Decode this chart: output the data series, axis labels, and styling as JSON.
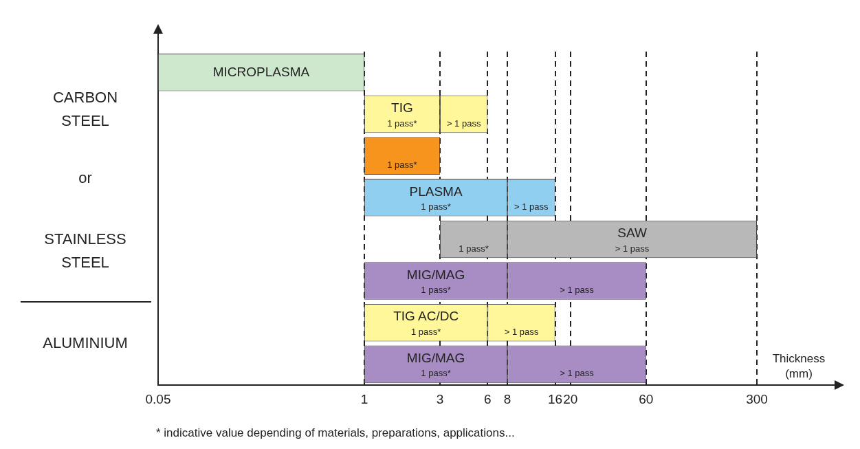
{
  "chart_data": {
    "type": "bar",
    "orientation": "horizontal",
    "categories": [
      "MICROPLASMA",
      "TIG",
      null,
      "PLASMA",
      "SAW",
      "MIG/MAG",
      "TIG AC/DC",
      "MIG/MAG"
    ],
    "series": [
      {
        "colors": [
          "#cde8cc",
          null,
          null,
          null,
          null,
          null,
          null,
          null
        ],
        "base": [
          0.05,
          null,
          null,
          null,
          null,
          null,
          null,
          null
        ],
        "values": [
          0.95,
          null,
          null,
          null,
          null,
          null,
          null,
          null
        ]
      },
      {
        "name": "1 pass*",
        "colors": [
          null,
          "#fff799",
          "#f7941d",
          "#91cff0",
          "#b8b8b8",
          "#a78dc4",
          "#fff799",
          "#a78dc4"
        ],
        "base": [
          null,
          1,
          1,
          1,
          3,
          1,
          1,
          1
        ],
        "values": [
          null,
          2,
          2,
          7,
          5,
          7,
          5,
          7
        ]
      },
      {
        "name": "> 1 pass",
        "colors": [
          null,
          "#fff799",
          null,
          "#91cff0",
          "#b8b8b8",
          "#a78dc4",
          "#fff799",
          "#a78dc4"
        ],
        "base": [
          null,
          3,
          null,
          8,
          8,
          8,
          6,
          8
        ],
        "values": [
          null,
          3,
          null,
          8,
          292,
          52,
          10,
          52
        ]
      }
    ],
    "xlim": [
      0.05,
      300
    ],
    "xticks": [
      0.05,
      1,
      3,
      6,
      8,
      16,
      20,
      60,
      300
    ],
    "xlabel": "Thickness (mm)",
    "grid": "x",
    "tick_labels": "x",
    "log": "x",
    "annotations": [
      "CARBON STEEL",
      "or",
      "STAINLESS STEEL",
      "ALUMINIUM",
      "* indicative value depending of materials, preparations, applications..."
    ]
  }
}
